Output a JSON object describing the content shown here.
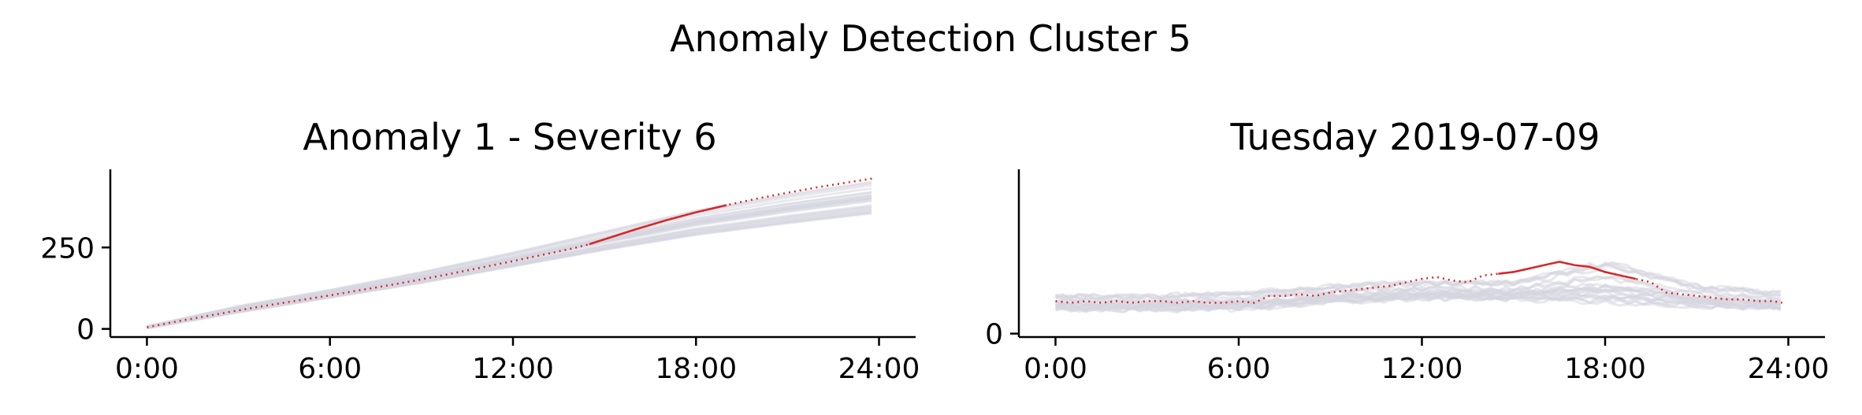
{
  "figure": {
    "suptitle": "Anomaly Detection Cluster 5"
  },
  "chart_data": [
    {
      "type": "line",
      "title": "Anomaly 1 - Severity 6",
      "xlabel": "",
      "ylabel": "",
      "x_ticks": [
        "0:00",
        "6:00",
        "12:00",
        "18:00",
        "24:00"
      ],
      "x_tick_hours": [
        0,
        6,
        12,
        18,
        24
      ],
      "xlim": [
        -1.2,
        25.2
      ],
      "y_ticks": [
        0,
        250
      ],
      "ylim": [
        -25,
        490
      ],
      "grid": false,
      "background_series": {
        "count": 24,
        "color": "#d5d5e0",
        "description_x_hours": [
          0,
          3,
          6,
          9,
          12,
          15,
          18,
          21,
          23.8
        ],
        "min_values": [
          2,
          50,
          95,
          140,
          190,
          240,
          285,
          320,
          350
        ],
        "max_values": [
          8,
          70,
          120,
          175,
          235,
          300,
          365,
          415,
          455
        ]
      },
      "series": [
        {
          "color": "#d62728",
          "x": [
            0,
            1,
            2,
            3,
            4,
            5,
            6,
            7,
            8,
            9,
            10,
            11,
            12,
            13,
            14,
            14.5,
            15,
            16,
            17,
            18,
            19,
            20,
            21,
            22,
            23,
            23.8
          ],
          "values": [
            5,
            23,
            40,
            57,
            73,
            88,
            103,
            119,
            135,
            152,
            170,
            189,
            208,
            228,
            248,
            260,
            275,
            305,
            333,
            358,
            380,
            400,
            418,
            435,
            450,
            462
          ],
          "solid_range_hours": [
            14.5,
            19
          ]
        }
      ]
    },
    {
      "type": "line",
      "title": "Tuesday 2019-07-09",
      "xlabel": "",
      "ylabel": "",
      "x_ticks": [
        "0:00",
        "6:00",
        "12:00",
        "18:00",
        "24:00"
      ],
      "x_tick_hours": [
        0,
        6,
        12,
        18,
        24
      ],
      "xlim": [
        -1.2,
        25.2
      ],
      "y_ticks": [
        0
      ],
      "ylim": [
        -1,
        48
      ],
      "grid": false,
      "background_series": {
        "count": 24,
        "color": "#d5d5e0",
        "description_x_hours": [
          0,
          3,
          6,
          9,
          12,
          15,
          18,
          21,
          23.8
        ],
        "min_values": [
          7,
          7,
          7,
          9,
          10,
          10,
          9,
          8,
          7
        ],
        "max_values": [
          11,
          11,
          12,
          14,
          15,
          15,
          21,
          14,
          12
        ]
      },
      "series": [
        {
          "color": "#d62728",
          "x": [
            0,
            0.5,
            1,
            1.5,
            2,
            2.5,
            3,
            3.5,
            4,
            4.5,
            5,
            5.5,
            6,
            6.5,
            7,
            7.5,
            8,
            8.5,
            9,
            9.5,
            10,
            10.5,
            11,
            11.5,
            12,
            12.5,
            13,
            13.5,
            14,
            14.5,
            15,
            15.5,
            16,
            16.5,
            17,
            17.5,
            18,
            18.5,
            19,
            19.5,
            20,
            20.5,
            21,
            21.5,
            22,
            22.5,
            23,
            23.5,
            23.8
          ],
          "values": [
            9.5,
            9,
            9.5,
            9,
            9.5,
            9,
            9.5,
            9.5,
            9,
            9.5,
            9,
            9,
            9.5,
            9,
            11,
            11,
            11.5,
            11,
            12,
            12.5,
            13,
            13.5,
            14,
            15,
            16,
            16.5,
            15.5,
            15,
            17,
            17.5,
            18,
            19,
            20,
            21,
            20,
            19.5,
            18,
            17,
            16,
            15,
            12,
            11.5,
            11,
            10.5,
            10,
            10,
            9.5,
            9.5,
            9
          ],
          "solid_range_hours": [
            14.5,
            19
          ]
        }
      ]
    }
  ]
}
